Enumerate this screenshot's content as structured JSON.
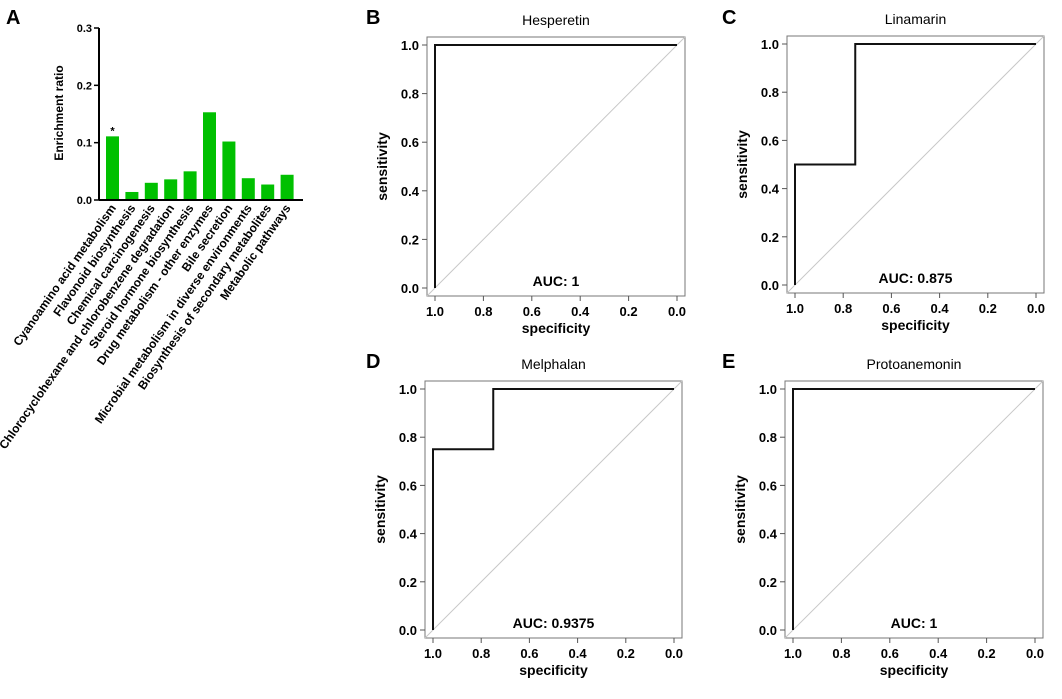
{
  "figure": {
    "panels": [
      "A",
      "B",
      "C",
      "D",
      "E"
    ]
  },
  "chart_data": [
    {
      "panel": "A",
      "type": "bar",
      "title": "",
      "xlabel": "",
      "ylabel": "Enrichment ratio",
      "ylim": [
        0,
        0.3
      ],
      "yticks": [
        "0.0",
        "0.1",
        "0.2",
        "0.3"
      ],
      "ytick_values": [
        0,
        0.1,
        0.2,
        0.3
      ],
      "bar_color": "#00c000",
      "categories": [
        "Cyanoamino acid metabolism",
        "Flavonoid biosynthesis",
        "Chemical carcinogenesis",
        "Chlorocyclohexane and chlorobenzene degradation",
        "Steroid hormone biosynthesis",
        "Drug metabolism - other enzymes",
        "Bile secretion",
        "Microbial metabolism in diverse environments",
        "Biosynthesis of secondary metabolites",
        "Metabolic pathways"
      ],
      "values": [
        0.111,
        0.014,
        0.03,
        0.036,
        0.05,
        0.153,
        0.102,
        0.038,
        0.027,
        0.044
      ],
      "annotations": [
        {
          "category_index": 0,
          "text": "*"
        }
      ],
      "grid": false,
      "legend": "none"
    },
    {
      "panel": "B",
      "type": "line",
      "title": "Hesperetin",
      "xlabel": "specificity",
      "ylabel": "sensitivity",
      "xlim": [
        1.0,
        0.0
      ],
      "ylim": [
        0.0,
        1.0
      ],
      "xticks": [
        "1.0",
        "0.8",
        "0.6",
        "0.4",
        "0.2",
        "0.0"
      ],
      "yticks": [
        "0.0",
        "0.2",
        "0.4",
        "0.6",
        "0.8",
        "1.0"
      ],
      "tick_values": [
        0,
        0.2,
        0.4,
        0.6,
        0.8,
        1.0
      ],
      "roc": {
        "specificity": [
          1.0,
          1.0,
          0.0
        ],
        "sensitivity": [
          0.0,
          1.0,
          1.0
        ]
      },
      "reference_line": "diagonal",
      "annotation": "AUC: 1"
    },
    {
      "panel": "C",
      "type": "line",
      "title": "Linamarin",
      "xlabel": "specificity",
      "ylabel": "sensitivity",
      "xlim": [
        1.0,
        0.0
      ],
      "ylim": [
        0.0,
        1.0
      ],
      "xticks": [
        "1.0",
        "0.8",
        "0.6",
        "0.4",
        "0.2",
        "0.0"
      ],
      "yticks": [
        "0.0",
        "0.2",
        "0.4",
        "0.6",
        "0.8",
        "1.0"
      ],
      "tick_values": [
        0,
        0.2,
        0.4,
        0.6,
        0.8,
        1.0
      ],
      "roc": {
        "specificity": [
          1.0,
          1.0,
          0.75,
          0.75,
          0.0
        ],
        "sensitivity": [
          0.0,
          0.5,
          0.5,
          1.0,
          1.0
        ]
      },
      "reference_line": "diagonal",
      "annotation": "AUC: 0.875"
    },
    {
      "panel": "D",
      "type": "line",
      "title": "Melphalan",
      "xlabel": "specificity",
      "ylabel": "sensitivity",
      "xlim": [
        1.0,
        0.0
      ],
      "ylim": [
        0.0,
        1.0
      ],
      "xticks": [
        "1.0",
        "0.8",
        "0.6",
        "0.4",
        "0.2",
        "0.0"
      ],
      "yticks": [
        "0.0",
        "0.2",
        "0.4",
        "0.6",
        "0.8",
        "1.0"
      ],
      "tick_values": [
        0,
        0.2,
        0.4,
        0.6,
        0.8,
        1.0
      ],
      "roc": {
        "specificity": [
          1.0,
          1.0,
          0.75,
          0.75,
          0.0
        ],
        "sensitivity": [
          0.0,
          0.75,
          0.75,
          1.0,
          1.0
        ]
      },
      "reference_line": "diagonal",
      "annotation": "AUC: 0.9375"
    },
    {
      "panel": "E",
      "type": "line",
      "title": "Protoanemonin",
      "xlabel": "specificity",
      "ylabel": "sensitivity",
      "xlim": [
        1.0,
        0.0
      ],
      "ylim": [
        0.0,
        1.0
      ],
      "xticks": [
        "1.0",
        "0.8",
        "0.6",
        "0.4",
        "0.2",
        "0.0"
      ],
      "yticks": [
        "0.0",
        "0.2",
        "0.4",
        "0.6",
        "0.8",
        "1.0"
      ],
      "tick_values": [
        0,
        0.2,
        0.4,
        0.6,
        0.8,
        1.0
      ],
      "roc": {
        "specificity": [
          1.0,
          1.0,
          0.0
        ],
        "sensitivity": [
          0.0,
          1.0,
          1.0
        ]
      },
      "reference_line": "diagonal",
      "annotation": "AUC: 1"
    }
  ]
}
